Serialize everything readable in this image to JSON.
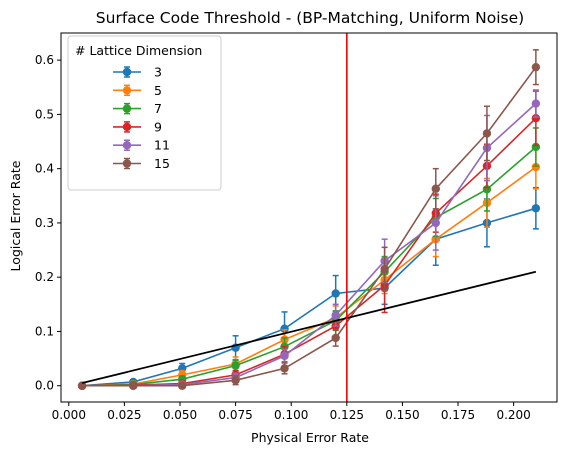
{
  "chart_data": {
    "type": "line",
    "title": "Surface Code Threshold - (BP-Matching, Uniform Noise)",
    "xlabel": "Physical Error Rate",
    "ylabel": "Logical Error Rate",
    "xlim": [
      -0.0035,
      0.2195
    ],
    "ylim": [
      -0.03,
      0.65
    ],
    "xticks": [
      "0.000",
      "0.025",
      "0.050",
      "0.075",
      "0.100",
      "0.125",
      "0.150",
      "0.175",
      "0.200"
    ],
    "yticks": [
      "0.0",
      "0.1",
      "0.2",
      "0.3",
      "0.4",
      "0.5",
      "0.6"
    ],
    "grid": false,
    "legend": {
      "title": "# Lattice Dimension",
      "placement": "top-left"
    },
    "x": [
      0.006,
      0.029,
      0.051,
      0.075,
      0.097,
      0.12,
      0.142,
      0.165,
      0.188,
      0.21
    ],
    "series": [
      {
        "name": "3",
        "color": "#1f77b4",
        "values": [
          0.0,
          0.007,
          0.032,
          0.07,
          0.105,
          0.17,
          0.18,
          0.27,
          0.3,
          0.327
        ],
        "errors": [
          0.003,
          0.004,
          0.009,
          0.022,
          0.031,
          0.033,
          0.03,
          0.048,
          0.044,
          0.038
        ]
      },
      {
        "name": "5",
        "color": "#ff7f0e",
        "values": [
          0.0,
          0.003,
          0.02,
          0.04,
          0.085,
          0.125,
          0.195,
          0.27,
          0.337,
          0.403
        ],
        "errors": [
          0.003,
          0.003,
          0.008,
          0.013,
          0.018,
          0.022,
          0.025,
          0.032,
          0.045,
          0.04
        ]
      },
      {
        "name": "7",
        "color": "#2ca02c",
        "values": [
          0.0,
          0.002,
          0.012,
          0.037,
          0.072,
          0.12,
          0.21,
          0.31,
          0.362,
          0.44
        ],
        "errors": [
          0.003,
          0.003,
          0.006,
          0.01,
          0.016,
          0.018,
          0.028,
          0.035,
          0.04,
          0.035
        ]
      },
      {
        "name": "9",
        "color": "#d62728",
        "values": [
          0.0,
          0.001,
          0.004,
          0.02,
          0.058,
          0.11,
          0.185,
          0.318,
          0.405,
          0.493
        ],
        "errors": [
          0.002,
          0.002,
          0.004,
          0.008,
          0.014,
          0.02,
          0.05,
          0.035,
          0.04,
          0.05
        ]
      },
      {
        "name": "11",
        "color": "#9467bd",
        "values": [
          0.0,
          0.0,
          0.002,
          0.015,
          0.055,
          0.13,
          0.23,
          0.3,
          0.438,
          0.52
        ],
        "errors": [
          0.002,
          0.002,
          0.004,
          0.008,
          0.012,
          0.02,
          0.04,
          0.05,
          0.06,
          0.025
        ]
      },
      {
        "name": "15",
        "color": "#8c564b",
        "values": [
          0.0,
          0.0,
          0.0,
          0.01,
          0.032,
          0.088,
          0.215,
          0.363,
          0.465,
          0.587
        ],
        "errors": [
          0.002,
          0.002,
          0.003,
          0.008,
          0.01,
          0.015,
          0.04,
          0.037,
          0.05,
          0.032
        ]
      }
    ],
    "reference_line": {
      "color": "#000000",
      "x": [
        0.006,
        0.21
      ],
      "y": [
        0.005,
        0.21
      ]
    },
    "threshold_line": {
      "color": "#ff0000",
      "x": 0.125
    }
  }
}
